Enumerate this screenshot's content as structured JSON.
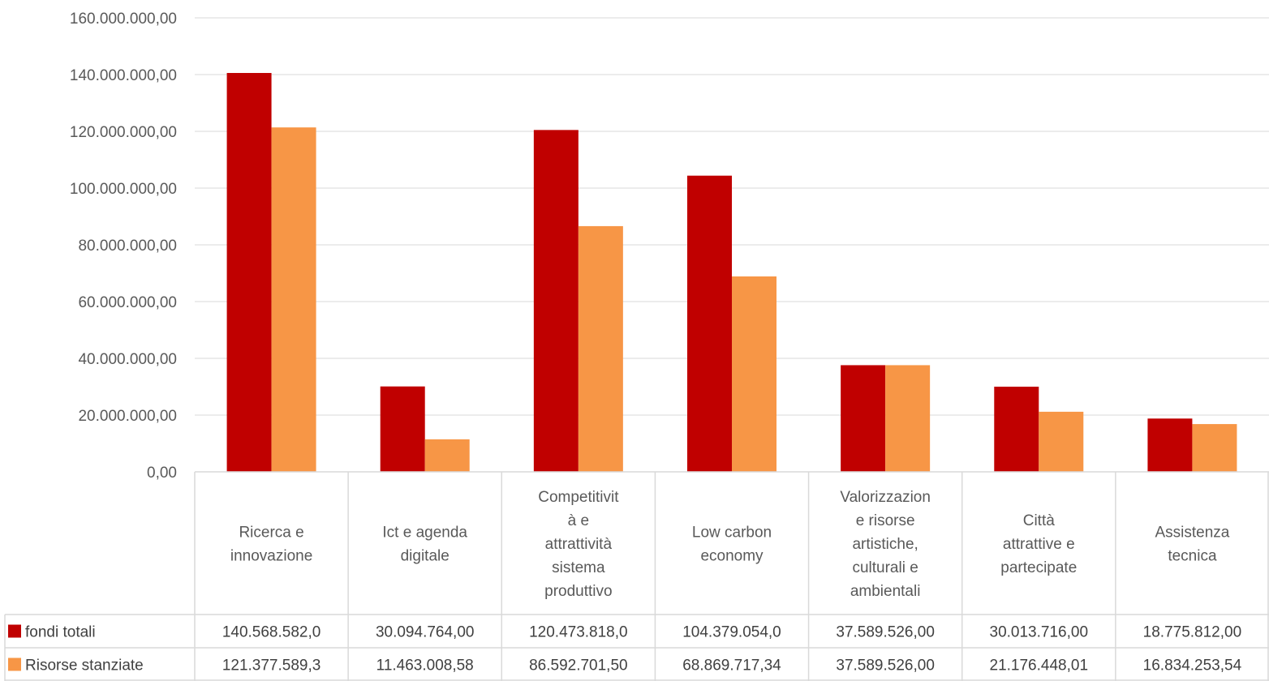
{
  "chart_data": {
    "type": "bar",
    "categories": [
      "Ricerca e innovazione",
      "Ict e agenda digitale",
      "Competitività e attrattività sistema produttivo",
      "Low carbon economy",
      "Valorizzazione risorse artistiche, culturali e ambientali",
      "Città attrattive e partecipate",
      "Assistenza tecnica"
    ],
    "category_label_lines": [
      [
        "Ricerca e",
        "innovazione"
      ],
      [
        "Ict e agenda",
        "digitale"
      ],
      [
        "Competitivit",
        "à e",
        "attrattività",
        "sistema",
        "produttivo"
      ],
      [
        "Low carbon",
        "economy"
      ],
      [
        "Valorizzazion",
        "e risorse",
        "artistiche,",
        "culturali e",
        "ambientali"
      ],
      [
        "Città",
        "attrattive e",
        "partecipate"
      ],
      [
        "Assistenza",
        "tecnica"
      ]
    ],
    "series": [
      {
        "name": "fondi totali",
        "color": "#C00000",
        "values": [
          140568582.0,
          30094764.0,
          120473818.0,
          104379054.0,
          37589526.0,
          30013716.0,
          18775812.0
        ],
        "table_labels": [
          "140.568.582,0",
          "30.094.764,00",
          "120.473.818,0",
          "104.379.054,0",
          "37.589.526,00",
          "30.013.716,00",
          "18.775.812,00"
        ]
      },
      {
        "name": "Risorse stanziate",
        "color": "#F79646",
        "values": [
          121377589.3,
          11463008.58,
          86592701.5,
          68869717.34,
          37589526.0,
          21176448.01,
          16834253.54
        ],
        "table_labels": [
          "121.377.589,3",
          "11.463.008,58",
          "86.592.701,50",
          "68.869.717,34",
          "37.589.526,00",
          "21.176.448,01",
          "16.834.253,54"
        ]
      }
    ],
    "ylim": [
      0,
      160000000
    ],
    "y_ticks": [
      0,
      20000000,
      40000000,
      60000000,
      80000000,
      100000000,
      120000000,
      140000000,
      160000000
    ],
    "y_tick_labels": [
      "0,00",
      "20.000.000,00",
      "40.000.000,00",
      "60.000.000,00",
      "80.000.000,00",
      "100.000.000,00",
      "120.000.000,00",
      "140.000.000,00",
      "160.000.000,00"
    ],
    "grid": true,
    "legend": "data-table",
    "title": "",
    "xlabel": "",
    "ylabel": ""
  }
}
